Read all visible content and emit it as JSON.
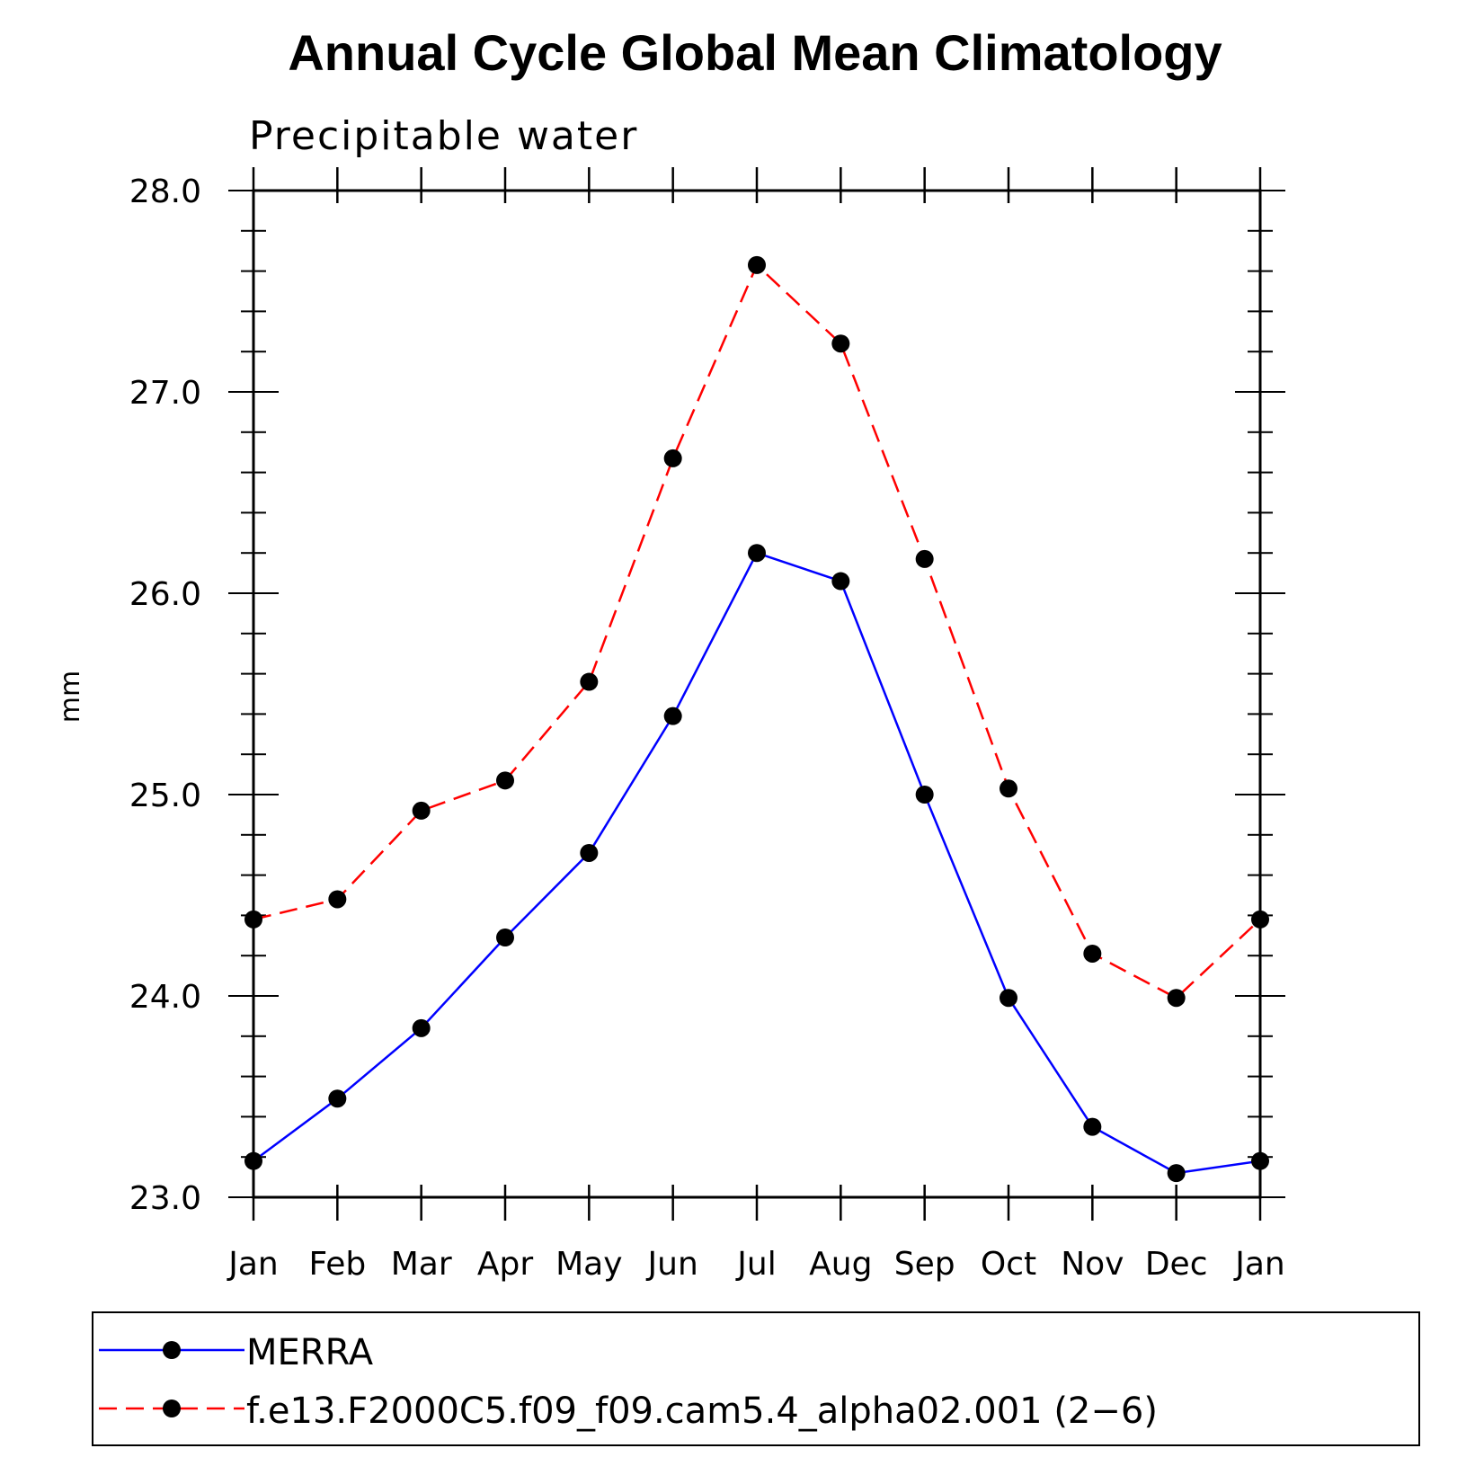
{
  "chart_data": {
    "type": "line",
    "title": "Annual Cycle Global Mean Climatology",
    "subtitle": "Precipitable water",
    "xlabel": "",
    "ylabel": "mm",
    "categories": [
      "Jan",
      "Feb",
      "Mar",
      "Apr",
      "May",
      "Jun",
      "Jul",
      "Aug",
      "Sep",
      "Oct",
      "Nov",
      "Dec",
      "Jan"
    ],
    "ylim": [
      23.0,
      28.0
    ],
    "yticks": [
      "23.0",
      "24.0",
      "25.0",
      "26.0",
      "27.0",
      "28.0"
    ],
    "grid": false,
    "legend_position": "bottom",
    "series": [
      {
        "name": "MERRA",
        "color": "#0000ff",
        "line_style": "solid",
        "marker": "filled-circle",
        "values": [
          23.18,
          23.49,
          23.84,
          24.29,
          24.71,
          25.39,
          26.2,
          26.06,
          25.0,
          23.99,
          23.35,
          23.12,
          23.18
        ]
      },
      {
        "name": "f.e13.F2000C5.f09_f09.cam5.4_alpha02.001 (2−6)",
        "color": "#ff0000",
        "line_style": "dashed",
        "marker": "filled-circle",
        "values": [
          24.38,
          24.48,
          24.92,
          25.07,
          25.56,
          26.67,
          27.63,
          27.24,
          26.17,
          25.03,
          24.21,
          23.99,
          24.38
        ]
      }
    ]
  }
}
